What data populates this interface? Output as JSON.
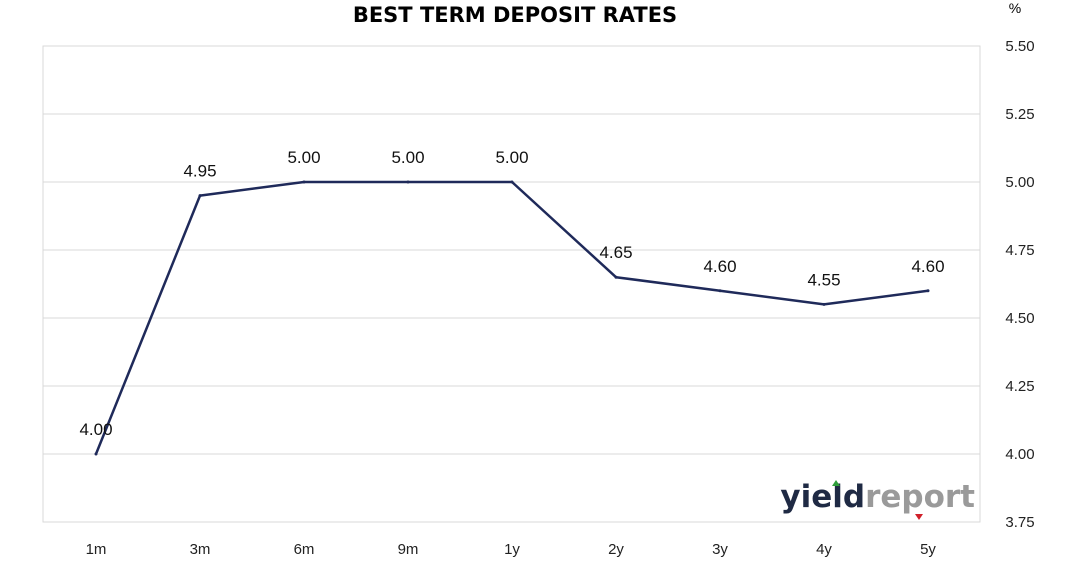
{
  "chart_data": {
    "type": "line",
    "title": "BEST TERM DEPOSIT RATES",
    "unit_label": "%",
    "categories": [
      "1m",
      "3m",
      "6m",
      "9m",
      "1y",
      "2y",
      "3y",
      "4y",
      "5y"
    ],
    "values": [
      4.0,
      4.95,
      5.0,
      5.0,
      5.0,
      4.65,
      4.6,
      4.55,
      4.6
    ],
    "data_labels": [
      "4.00",
      "4.95",
      "5.00",
      "5.00",
      "5.00",
      "4.65",
      "4.60",
      "4.55",
      "4.60"
    ],
    "ylim": [
      3.75,
      5.5
    ],
    "y_ticks": [
      "3.75",
      "4.00",
      "4.25",
      "4.50",
      "4.75",
      "5.00",
      "5.25",
      "5.50"
    ],
    "y_axis_side": "right",
    "grid": true,
    "line_color": "#1f2a5a"
  },
  "logo": {
    "part1": "yield",
    "part2": "report"
  }
}
